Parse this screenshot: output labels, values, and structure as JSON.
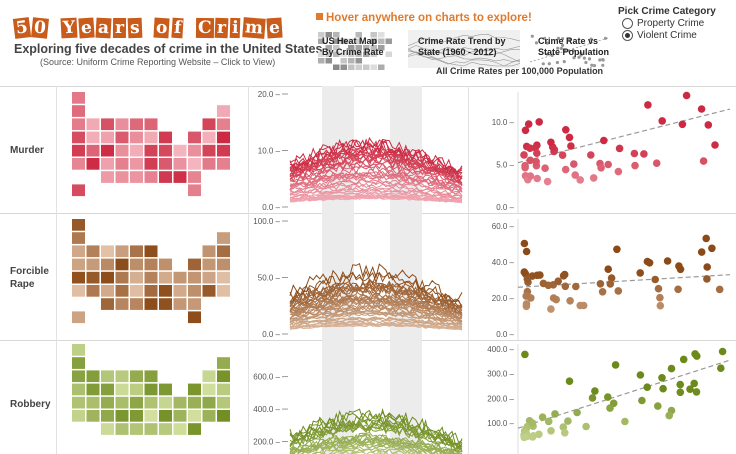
{
  "header": {
    "title_words": [
      "50",
      "Years",
      "of",
      "Crime"
    ],
    "subtitle": "Exploring five decades of crime in the United States",
    "source": "(Source: Uniform Crime Reporting Website – Click to View)",
    "hover_hint": "Hover anywhere on charts to explore!",
    "nav": [
      {
        "label": "US Heat Map\nBy Crime Rate"
      },
      {
        "label": "Crime Rate Trend by\nState (1960 - 2012)"
      },
      {
        "label": "Crime Rate vs\nState Population"
      }
    ],
    "rate_caption": "All Crime Rates per 100,000 Population"
  },
  "picker": {
    "title": "Pick Crime Category",
    "options": [
      {
        "label": "Property Crime",
        "selected": false
      },
      {
        "label": "Violent Crime",
        "selected": true
      }
    ]
  },
  "rows": [
    {
      "label": "Murder",
      "color_dark": "#cc2a42",
      "color_light": "#f6bcc4",
      "line_ticks": [
        "20.0",
        "10.0",
        "0.0"
      ],
      "line_max": 20,
      "scatter_ticks": [
        "10.0",
        "5.0",
        "0.0"
      ],
      "scatter_max": 13.5
    },
    {
      "label": "Forcible\nRape",
      "color_dark": "#8b4a17",
      "color_light": "#e3c2a9",
      "line_ticks": [
        "100.0",
        "50.0",
        "0.0"
      ],
      "line_max": 100,
      "scatter_ticks": [
        "60.0",
        "40.0",
        "20.0",
        "0.0"
      ],
      "scatter_max": 64
    },
    {
      "label": "Robbery",
      "color_dark": "#6c8a1c",
      "color_light": "#d3e0a0",
      "line_ticks": [
        "600.0",
        "400.0",
        "200.0"
      ],
      "line_max": 690,
      "scatter_ticks": [
        "400.0",
        "300.0",
        "200.0",
        "100.0"
      ],
      "scatter_max": 420
    }
  ]
}
